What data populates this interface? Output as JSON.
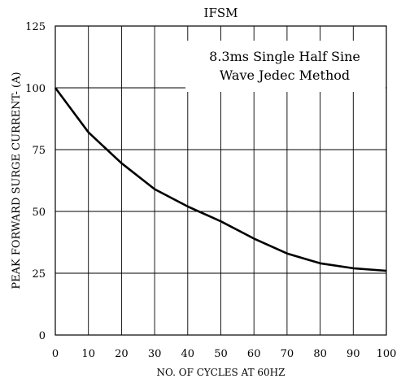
{
  "chart_data": {
    "type": "line",
    "title": "IFSM",
    "xlabel": "NO. OF CYCLES AT 60HZ",
    "ylabel": "PEAK FORWARD SURGE CURRENT- (A)",
    "annotation": [
      "8.3ms Single Half Sine",
      "Wave Jedec Method"
    ],
    "xlim": [
      0,
      100
    ],
    "ylim": [
      0,
      125
    ],
    "xticks": [
      0,
      10,
      20,
      30,
      40,
      50,
      60,
      70,
      80,
      90,
      100
    ],
    "yticks": [
      0,
      25,
      50,
      75,
      100,
      125
    ],
    "grid": true,
    "series": [
      {
        "x": [
          0,
          10,
          20,
          30,
          40,
          50,
          60,
          70,
          80,
          90,
          100
        ],
        "y": [
          100,
          82,
          69.5,
          59,
          52,
          46,
          39,
          33,
          29,
          27,
          26
        ]
      }
    ]
  }
}
